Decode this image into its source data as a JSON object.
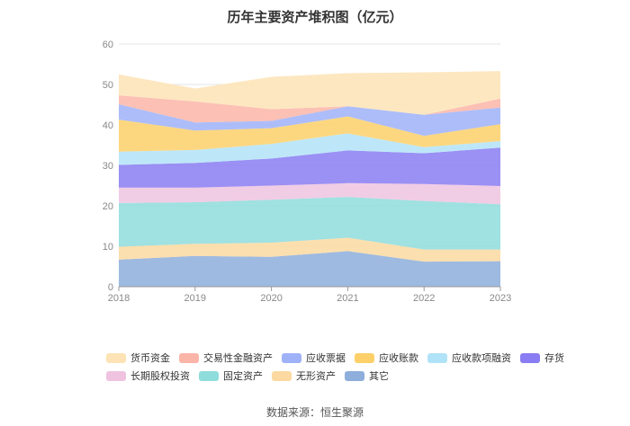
{
  "chart_data": {
    "type": "area",
    "stacked": true,
    "title": "历年主要资产堆积图（亿元）",
    "x": [
      "2018",
      "2019",
      "2020",
      "2021",
      "2022",
      "2023"
    ],
    "ylim": [
      0,
      60
    ],
    "yticks": [
      0,
      10,
      20,
      30,
      40,
      50,
      60
    ],
    "series": [
      {
        "name": "其它",
        "color": "#8eaedb",
        "values": [
          6.7,
          7.6,
          7.4,
          8.8,
          6.2,
          6.3
        ]
      },
      {
        "name": "无形资产",
        "color": "#fcd9a0",
        "values": [
          3.2,
          3.0,
          3.5,
          3.3,
          3.0,
          2.9
        ]
      },
      {
        "name": "固定资产",
        "color": "#8fdcdc",
        "values": [
          10.8,
          10.3,
          10.6,
          10.1,
          12.0,
          11.2
        ]
      },
      {
        "name": "长期股权投资",
        "color": "#efc3e0",
        "values": [
          3.8,
          3.6,
          3.5,
          3.4,
          4.2,
          4.5
        ]
      },
      {
        "name": "存货",
        "color": "#8a7cf2",
        "values": [
          5.6,
          6.1,
          6.7,
          8.1,
          7.6,
          9.5
        ]
      },
      {
        "name": "应收款项融资",
        "color": "#b1e3f8",
        "values": [
          3.3,
          3.2,
          3.6,
          4.2,
          1.5,
          1.6
        ]
      },
      {
        "name": "应收账款",
        "color": "#fdd06a",
        "values": [
          7.9,
          4.8,
          3.9,
          4.2,
          2.8,
          4.2
        ]
      },
      {
        "name": "应收票据",
        "color": "#9fb2f8",
        "values": [
          3.8,
          2.0,
          1.8,
          2.5,
          5.2,
          4.1
        ]
      },
      {
        "name": "交易性金融资产",
        "color": "#fbb5a8",
        "values": [
          2.2,
          5.2,
          2.9,
          0.0,
          0.0,
          2.2
        ]
      },
      {
        "name": "货币资金",
        "color": "#fde3b5",
        "values": [
          5.2,
          3.2,
          8.0,
          8.2,
          10.5,
          6.8
        ]
      }
    ],
    "legend": [
      [
        "货币资金",
        "交易性金融资产",
        "应收票据",
        "应收账款",
        "应收款项融资",
        "存货"
      ],
      [
        "长期股权投资",
        "固定资产",
        "无形资产",
        "其它"
      ]
    ],
    "legend_position": "bottom"
  },
  "source_text": "数据来源：恒生聚源"
}
